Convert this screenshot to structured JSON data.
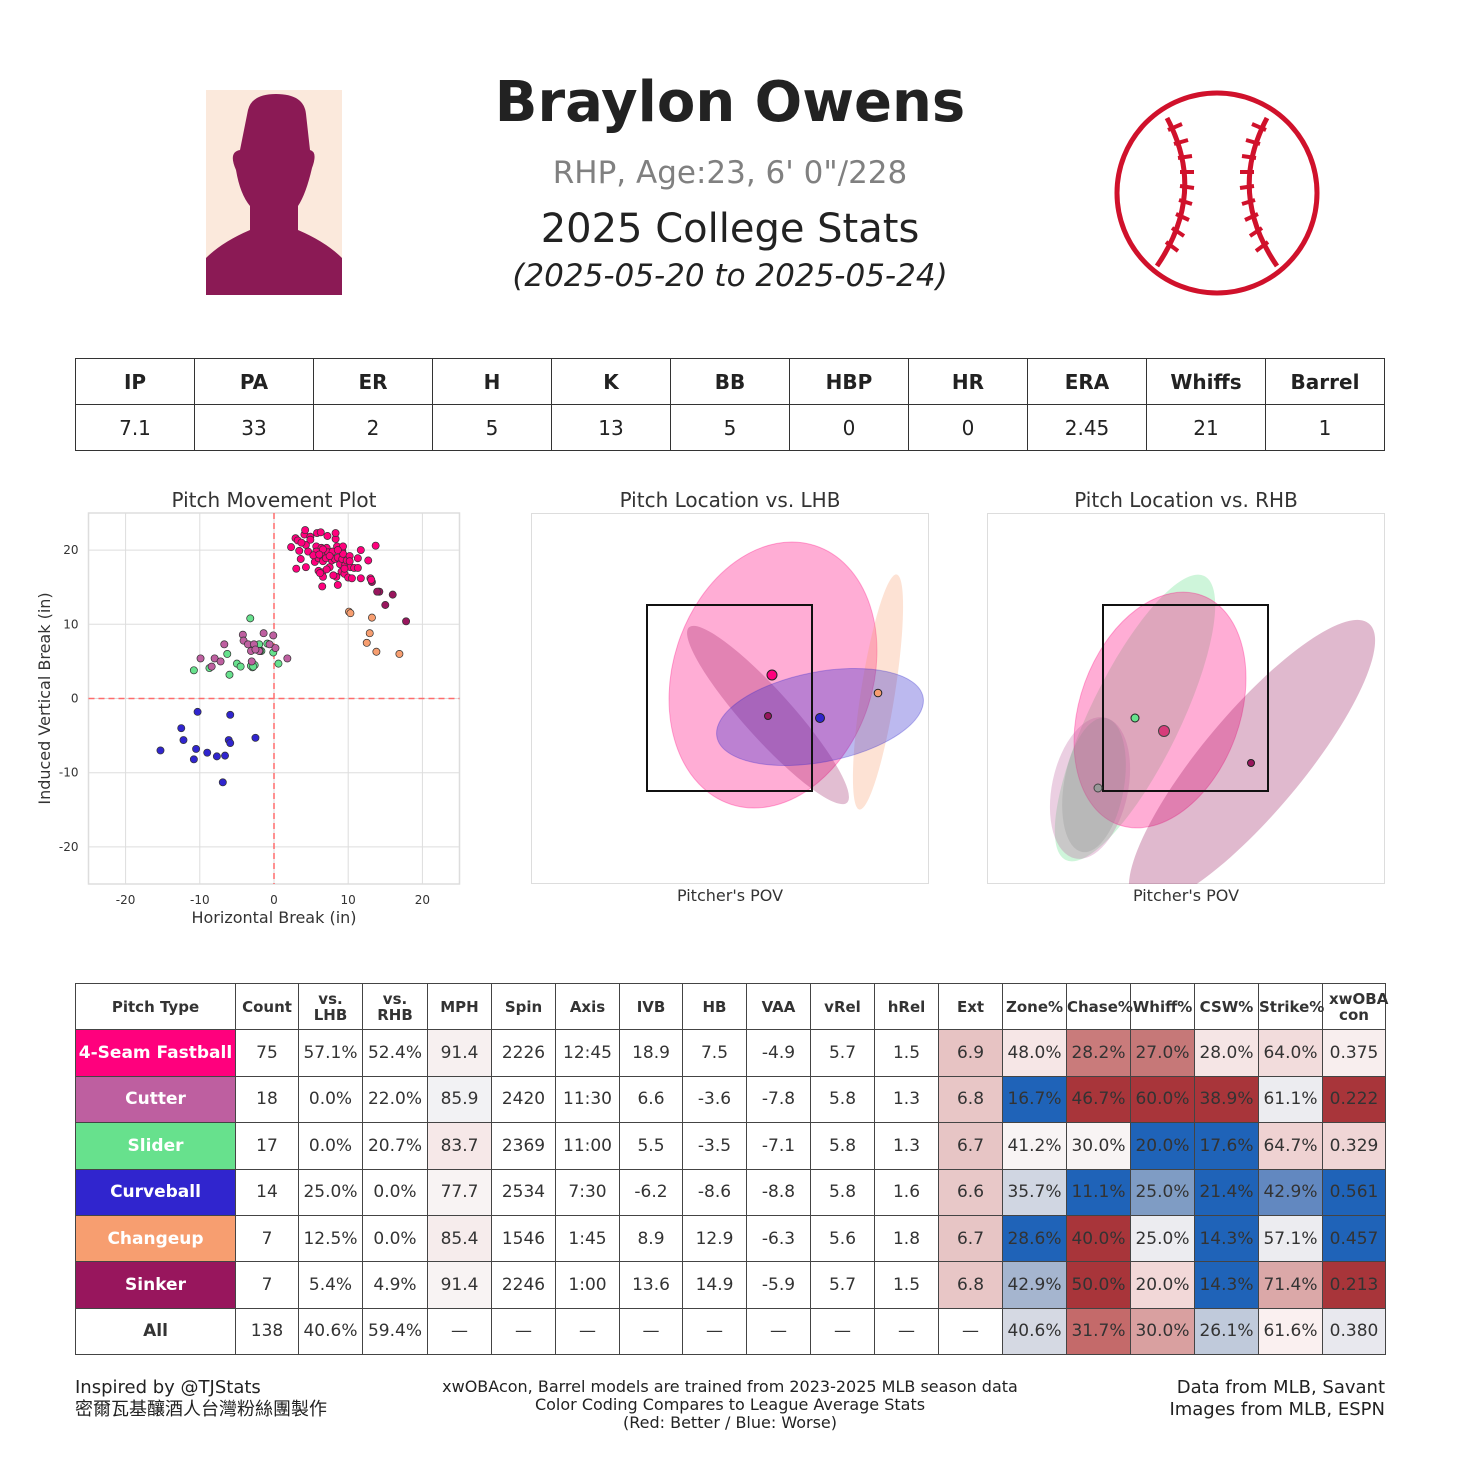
{
  "header": {
    "name": "Braylon Owens",
    "bio": "RHP, Age:23, 6' 0\"/228",
    "stats_title": "2025 College Stats",
    "date_range": "(2025-05-20 to 2025-05-24)",
    "photo_icon": "player-silhouette",
    "logo_icon": "baseball-logo",
    "logo_color": "#d0112b"
  },
  "summary": {
    "headers": [
      "IP",
      "PA",
      "ER",
      "H",
      "K",
      "BB",
      "HBP",
      "HR",
      "ERA",
      "Whiffs",
      "Barrel"
    ],
    "values": [
      "7.1",
      "33",
      "2",
      "5",
      "13",
      "5",
      "0",
      "0",
      "2.45",
      "21",
      "1"
    ]
  },
  "pitch_colors": {
    "4-Seam Fastball": "#ff007d",
    "Cutter": "#be5fa0",
    "Slider": "#67e18d",
    "Curveball": "#3025ce",
    "Changeup": "#f79e70",
    "Sinker": "#98165d"
  },
  "chart_data": [
    {
      "type": "scatter",
      "title": "Pitch Movement Plot",
      "xlabel": "Horizontal Break (in)",
      "ylabel": "Induced Vertical Break (in)",
      "xlim": [
        -25,
        25
      ],
      "ylim": [
        -25,
        25
      ],
      "xticks": [
        "-20",
        "-10",
        "0",
        "10",
        "20"
      ],
      "yticks": [
        "20",
        "10",
        "0",
        "-10",
        "-20"
      ],
      "grid": true,
      "reference_lines": {
        "x": 0,
        "y": 0,
        "style": "dashed",
        "color": "#ff6b6b"
      },
      "series": [
        {
          "pitch": "Curveball",
          "points": [
            [
              -15.3,
              -7.0
            ],
            [
              -10.3,
              -1.8
            ],
            [
              -5.9,
              -2.2
            ],
            [
              -12.5,
              -4.0
            ],
            [
              -12.2,
              -5.6
            ],
            [
              -10.5,
              -6.8
            ],
            [
              -10.8,
              -8.2
            ],
            [
              -9.0,
              -7.3
            ],
            [
              -7.7,
              -7.8
            ],
            [
              -6.6,
              -7.7
            ],
            [
              -6.1,
              -5.6
            ],
            [
              -5.9,
              -6.0
            ],
            [
              -2.5,
              -5.3
            ],
            [
              -6.9,
              -11.3
            ]
          ]
        },
        {
          "pitch": "Slider",
          "points": [
            [
              -3.2,
              10.8
            ],
            [
              -10.8,
              3.8
            ],
            [
              -8.7,
              4.1
            ],
            [
              -6.3,
              6.0
            ],
            [
              -6.0,
              3.2
            ],
            [
              -5.0,
              4.7
            ],
            [
              -4.5,
              4.3
            ],
            [
              -2.9,
              4.2
            ],
            [
              -2.6,
              4.5
            ],
            [
              -2.0,
              7.3
            ],
            [
              -1.7,
              6.4
            ],
            [
              -0.9,
              7.4
            ],
            [
              -0.1,
              6.2
            ],
            [
              0.6,
              4.7
            ],
            [
              -1.9,
              6.4
            ],
            [
              -3.1,
              4.4
            ],
            [
              -2.8,
              4.3
            ]
          ]
        },
        {
          "pitch": "Cutter",
          "points": [
            [
              -9.9,
              5.4
            ],
            [
              -8.4,
              4.3
            ],
            [
              -8.0,
              5.4
            ],
            [
              -7.2,
              5.0
            ],
            [
              -6.7,
              7.3
            ],
            [
              -4.2,
              8.6
            ],
            [
              -4.1,
              7.8
            ],
            [
              -3.5,
              7.3
            ],
            [
              -3.1,
              6.4
            ],
            [
              -3.0,
              5.0
            ],
            [
              -2.7,
              7.3
            ],
            [
              -2.0,
              6.4
            ],
            [
              -1.4,
              8.8
            ],
            [
              -0.6,
              7.3
            ],
            [
              -0.1,
              8.5
            ],
            [
              0.2,
              6.8
            ],
            [
              1.8,
              5.4
            ],
            [
              -2.5,
              6.6
            ]
          ]
        },
        {
          "pitch": "Changeup",
          "points": [
            [
              10.1,
              11.7
            ],
            [
              10.3,
              11.5
            ],
            [
              13.2,
              10.9
            ],
            [
              12.9,
              8.8
            ],
            [
              12.5,
              7.5
            ],
            [
              13.8,
              6.3
            ],
            [
              16.9,
              6.0
            ]
          ]
        },
        {
          "pitch": "Sinker",
          "points": [
            [
              13.2,
              15.7
            ],
            [
              14.1,
              14.4
            ],
            [
              14.2,
              14.4
            ],
            [
              13.9,
              14.4
            ],
            [
              16.0,
              14.0
            ],
            [
              15.0,
              12.6
            ],
            [
              17.8,
              10.4
            ]
          ]
        },
        {
          "pitch": "4-Seam Fastball",
          "points": [
            [
              2.3,
              20.4
            ],
            [
              2.9,
              21.6
            ],
            [
              3.2,
              21.3
            ],
            [
              3.0,
              17.5
            ],
            [
              3.4,
              19.9
            ],
            [
              3.6,
              18.8
            ],
            [
              4.1,
              22.1
            ],
            [
              4.2,
              22.7
            ],
            [
              4.3,
              20.7
            ],
            [
              4.3,
              17.7
            ],
            [
              4.6,
              19.8
            ],
            [
              4.9,
              21.8
            ],
            [
              4.9,
              21.4
            ],
            [
              5.5,
              19.3
            ],
            [
              5.5,
              18.4
            ],
            [
              5.7,
              20.5
            ],
            [
              5.8,
              22.3
            ],
            [
              5.9,
              19.6
            ],
            [
              6.0,
              17.2
            ],
            [
              6.0,
              18.9
            ],
            [
              6.3,
              22.4
            ],
            [
              6.4,
              20.3
            ],
            [
              6.5,
              19.2
            ],
            [
              6.5,
              17.0
            ],
            [
              6.5,
              15.1
            ],
            [
              6.6,
              18.5
            ],
            [
              6.6,
              16.4
            ],
            [
              7.0,
              18.9
            ],
            [
              7.1,
              20.3
            ],
            [
              7.2,
              21.9
            ],
            [
              7.3,
              19.7
            ],
            [
              7.5,
              17.7
            ],
            [
              7.8,
              18.6
            ],
            [
              7.9,
              19.8
            ],
            [
              8.2,
              18.8
            ],
            [
              8.3,
              21.5
            ],
            [
              8.3,
              22.3
            ],
            [
              8.4,
              16.4
            ],
            [
              8.5,
              20.5
            ],
            [
              8.6,
              15.3
            ],
            [
              8.6,
              19.0
            ],
            [
              8.9,
              18.1
            ],
            [
              9.1,
              17.1
            ],
            [
              9.2,
              19.9
            ],
            [
              9.2,
              18.8
            ],
            [
              9.3,
              20.5
            ],
            [
              9.5,
              16.8
            ],
            [
              9.6,
              18.0
            ],
            [
              9.8,
              18.6
            ],
            [
              10.0,
              16.3
            ],
            [
              10.3,
              17.7
            ],
            [
              10.5,
              16.2
            ],
            [
              10.8,
              17.6
            ],
            [
              11.3,
              18.9
            ],
            [
              11.3,
              17.6
            ],
            [
              11.7,
              20.0
            ],
            [
              11.7,
              16.2
            ],
            [
              12.7,
              18.6
            ],
            [
              13.0,
              16.2
            ],
            [
              13.7,
              20.6
            ],
            [
              13.1,
              16.0
            ],
            [
              6.2,
              16.9
            ],
            [
              5.7,
              19.8
            ],
            [
              5.3,
              19.3
            ],
            [
              7.5,
              19.2
            ],
            [
              9.3,
              19.5
            ],
            [
              9.5,
              17.5
            ],
            [
              8.0,
              16.6
            ],
            [
              6.6,
              20.1
            ],
            [
              8.6,
              20.0
            ],
            [
              10.2,
              19.2
            ],
            [
              3.7,
              21.0
            ],
            [
              10.2,
              18.5
            ],
            [
              7.1,
              17.4
            ],
            [
              6.1,
              19.4
            ]
          ]
        }
      ]
    }
  ],
  "location_plots": {
    "lhb": {
      "title": "Pitch Location vs. LHB",
      "xlabel": "Pitcher's POV"
    },
    "rhb": {
      "title": "Pitch Location vs. RHB",
      "xlabel": "Pitcher's POV"
    }
  },
  "pitch_table": {
    "headers": [
      "Pitch Type",
      "Count",
      "vs. LHB",
      "vs. RHB",
      "MPH",
      "Spin",
      "Axis",
      "IVB",
      "HB",
      "VAA",
      "vRel",
      "hRel",
      "Ext",
      "Zone%",
      "Chase%",
      "Whiff%",
      "CSW%",
      "Strike%",
      "xwOBA con"
    ],
    "rows": [
      {
        "cells": [
          "4-Seam Fastball",
          "75",
          "57.1%",
          "52.4%",
          "91.4",
          "2226",
          "12:45",
          "18.9",
          "7.5",
          "-4.9",
          "5.7",
          "1.5",
          "6.9",
          "48.0%",
          "28.2%",
          "27.0%",
          "28.0%",
          "64.0%",
          "0.375"
        ],
        "colors": [
          "#ff007d",
          "#ffffff",
          "#ffffff",
          "#ffffff",
          "#f7f0f0",
          "#ffffff",
          "#ffffff",
          "#ffffff",
          "#ffffff",
          "#ffffff",
          "#ffffff",
          "#ffffff",
          "#e7c3c3",
          "#f6e6e6",
          "#c97b7b",
          "#c67878",
          "#f5e5e5",
          "#f2dcdc",
          "#f8eeee"
        ]
      },
      {
        "cells": [
          "Cutter",
          "18",
          "0.0%",
          "22.0%",
          "85.9",
          "2420",
          "11:30",
          "6.6",
          "-3.6",
          "-7.8",
          "5.8",
          "1.3",
          "6.8",
          "16.7%",
          "46.7%",
          "60.0%",
          "38.9%",
          "61.1%",
          "0.222"
        ],
        "colors": [
          "#be5fa0",
          "#ffffff",
          "#ffffff",
          "#ffffff",
          "#f2f2f4",
          "#ffffff",
          "#ffffff",
          "#ffffff",
          "#ffffff",
          "#ffffff",
          "#ffffff",
          "#ffffff",
          "#e8c6c6",
          "#1f63b8",
          "#a8353a",
          "#a8353a",
          "#a8353a",
          "#ececf0",
          "#a8353a"
        ]
      },
      {
        "cells": [
          "Slider",
          "17",
          "0.0%",
          "20.7%",
          "83.7",
          "2369",
          "11:00",
          "5.5",
          "-3.5",
          "-7.1",
          "5.8",
          "1.3",
          "6.7",
          "41.2%",
          "30.0%",
          "20.0%",
          "17.6%",
          "64.7%",
          "0.329"
        ],
        "colors": [
          "#67e18d",
          "#ffffff",
          "#ffffff",
          "#ffffff",
          "#f6e8e8",
          "#ffffff",
          "#ffffff",
          "#ffffff",
          "#ffffff",
          "#ffffff",
          "#ffffff",
          "#ffffff",
          "#e7c5c5",
          "#f8f4f4",
          "#f8f4f4",
          "#1f63b8",
          "#1f63b8",
          "#efd2d2",
          "#f0d6d6"
        ]
      },
      {
        "cells": [
          "Curveball",
          "14",
          "25.0%",
          "0.0%",
          "77.7",
          "2534",
          "7:30",
          "-6.2",
          "-8.6",
          "-8.8",
          "5.8",
          "1.6",
          "6.6",
          "35.7%",
          "11.1%",
          "25.0%",
          "21.4%",
          "42.9%",
          "0.561"
        ],
        "colors": [
          "#3025ce",
          "#ffffff",
          "#ffffff",
          "#ffffff",
          "#f8f3f3",
          "#ffffff",
          "#ffffff",
          "#ffffff",
          "#ffffff",
          "#ffffff",
          "#ffffff",
          "#ffffff",
          "#e8c8c8",
          "#d0d6e2",
          "#1f63b8",
          "#7f9cc4",
          "#1f63b8",
          "#6288c0",
          "#1f63b8"
        ]
      },
      {
        "cells": [
          "Changeup",
          "7",
          "12.5%",
          "0.0%",
          "85.4",
          "1546",
          "1:45",
          "8.9",
          "12.9",
          "-6.3",
          "5.6",
          "1.8",
          "6.7",
          "28.6%",
          "40.0%",
          "25.0%",
          "14.3%",
          "57.1%",
          "0.457"
        ],
        "colors": [
          "#f79e70",
          "#ffffff",
          "#ffffff",
          "#ffffff",
          "#f6ecec",
          "#ffffff",
          "#ffffff",
          "#ffffff",
          "#ffffff",
          "#ffffff",
          "#ffffff",
          "#ffffff",
          "#e7c5c5",
          "#1f63b8",
          "#a8353a",
          "#ececf0",
          "#1f63b8",
          "#ececf0",
          "#1f63b8"
        ]
      },
      {
        "cells": [
          "Sinker",
          "7",
          "5.4%",
          "4.9%",
          "91.4",
          "2246",
          "1:00",
          "13.6",
          "14.9",
          "-5.9",
          "5.7",
          "1.5",
          "6.8",
          "42.9%",
          "50.0%",
          "20.0%",
          "14.3%",
          "71.4%",
          "0.213"
        ],
        "colors": [
          "#98165d",
          "#ffffff",
          "#ffffff",
          "#ffffff",
          "#f8f3f3",
          "#ffffff",
          "#ffffff",
          "#ffffff",
          "#ffffff",
          "#ffffff",
          "#ffffff",
          "#ffffff",
          "#e8c6c6",
          "#a5b5cf",
          "#a8353a",
          "#f2d8d8",
          "#1f63b8",
          "#dba8a8",
          "#a8353a"
        ]
      },
      {
        "cells": [
          "All",
          "138",
          "40.6%",
          "59.4%",
          "—",
          "—",
          "—",
          "—",
          "—",
          "—",
          "—",
          "—",
          "—",
          "40.6%",
          "31.7%",
          "30.0%",
          "26.1%",
          "61.6%",
          "0.380"
        ],
        "colors": [
          "#ffffff",
          "#ffffff",
          "#ffffff",
          "#ffffff",
          "#ffffff",
          "#ffffff",
          "#ffffff",
          "#ffffff",
          "#ffffff",
          "#ffffff",
          "#ffffff",
          "#ffffff",
          "#ffffff",
          "#d5d9e3",
          "#c46a6a",
          "#d9a0a0",
          "#c0cadb",
          "#faf0f0",
          "#e8e8ee"
        ]
      }
    ]
  },
  "footer": {
    "left": [
      "Inspired by @TJStats",
      "密爾瓦基釀酒人台灣粉絲團製作"
    ],
    "center": [
      "xwOBAcon, Barrel models are trained from 2023-2025 MLB season data",
      "Color Coding Compares to League Average Stats",
      "(Red: Better / Blue: Worse)"
    ],
    "right": [
      "Data from MLB, Savant",
      "Images from MLB, ESPN"
    ]
  }
}
